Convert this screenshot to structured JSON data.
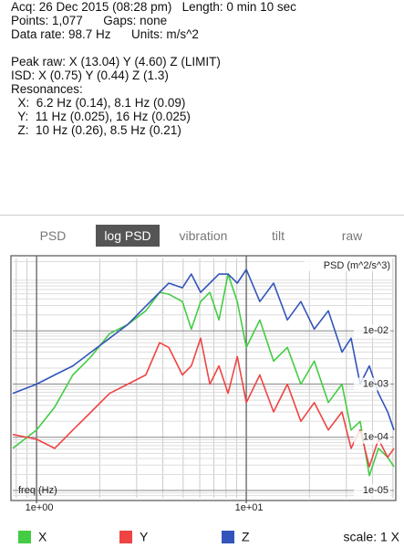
{
  "info": {
    "groups": [
      [
        "Acq: 26 Dec 2015 (08:28 pm)   Length: 0 min 10 sec",
        "Points: 1,077      Gaps: none",
        "Data rate: 98.7 Hz      Units: m/s^2"
      ],
      [
        "Peak raw: X (13.04) Y (4.60) Z (LIMIT)",
        "ISD: X (0.75) Y (0.44) Z (1.3)",
        "Resonances:",
        "  X:  6.2 Hz (0.14), 8.1 Hz (0.09)",
        "  Y:  11 Hz (0.025), 16 Hz (0.025)",
        "  Z:  10 Hz (0.26), 8.5 Hz (0.21)"
      ]
    ]
  },
  "tabs": {
    "items": [
      "PSD",
      "log PSD",
      "vibration",
      "tilt",
      "raw"
    ],
    "selected": 1
  },
  "chart_data": {
    "type": "line",
    "ylabel": "PSD (m^2/s^3)",
    "xlabel": "freq (Hz)",
    "xlog": true,
    "ylog": true,
    "grid": true,
    "minor_grid": true,
    "xlim": [
      0.77,
      50.6
    ],
    "ylim": [
      7.3e-06,
      0.23
    ],
    "xticks": [
      {
        "value": 1,
        "label": "1e+00"
      },
      {
        "value": 10,
        "label": "1e+01"
      }
    ],
    "yticks": [
      {
        "value": 0.01,
        "label": "1e-02"
      },
      {
        "value": 0.001,
        "label": "1e-03"
      },
      {
        "value": 0.0001,
        "label": "1e-04"
      },
      {
        "value": 1e-05,
        "label": "1e-05"
      }
    ],
    "x": [
      0.77,
      1,
      1.22,
      1.49,
      1.82,
      2.23,
      2.72,
      3.32,
      3.86,
      4.27,
      4.96,
      5.47,
      6.06,
      6.7,
      7.41,
      8.19,
      9.06,
      10,
      11.6,
      13.5,
      15.7,
      18.2,
      21.1,
      24.6,
      28.6,
      31.6,
      34.9,
      38.6,
      42.7,
      47.2,
      50.6
    ],
    "series": [
      {
        "name": "X",
        "color": "#44cc44",
        "values": [
          6.2e-05,
          0.000137,
          0.00037,
          0.00149,
          0.0033,
          0.0089,
          0.0132,
          0.0239,
          0.053,
          0.049,
          0.0356,
          0.0108,
          0.0356,
          0.053,
          0.0161,
          0.117,
          0.0356,
          0.0049,
          0.0161,
          0.0027,
          0.0049,
          0.001,
          0.0027,
          0.00045,
          0.001,
          0.000137,
          0.0002,
          1.9e-05,
          6.2e-05,
          4.2e-05,
          2.8e-05
        ]
      },
      {
        "name": "Y",
        "color": "#ee4444",
        "values": [
          0.000113,
          9.2e-05,
          6.2e-05,
          0.000137,
          0.0003,
          0.00067,
          0.001,
          0.00149,
          0.006,
          0.0049,
          0.00149,
          0.0022,
          0.0073,
          0.001,
          0.0022,
          0.00067,
          0.0033,
          0.00045,
          0.00149,
          0.0003,
          0.001,
          0.0002,
          0.00045,
          0.000137,
          0.0003,
          6.2e-05,
          0.000137,
          2.8e-05,
          9.2e-05,
          4.2e-05,
          6.2e-05
        ]
      },
      {
        "name": "Z",
        "color": "#3355bb",
        "values": [
          0.00067,
          0.001,
          0.00149,
          0.0022,
          0.004,
          0.0073,
          0.0132,
          0.0292,
          0.053,
          0.079,
          0.0646,
          0.117,
          0.053,
          0.079,
          0.117,
          0.117,
          0.079,
          0.143,
          0.0356,
          0.079,
          0.0161,
          0.0356,
          0.0108,
          0.0239,
          0.004,
          0.0073,
          0.001,
          0.0022,
          0.00067,
          0.0003,
          0.000137
        ]
      }
    ]
  },
  "footer": {
    "scale": "scale: 1 X"
  }
}
